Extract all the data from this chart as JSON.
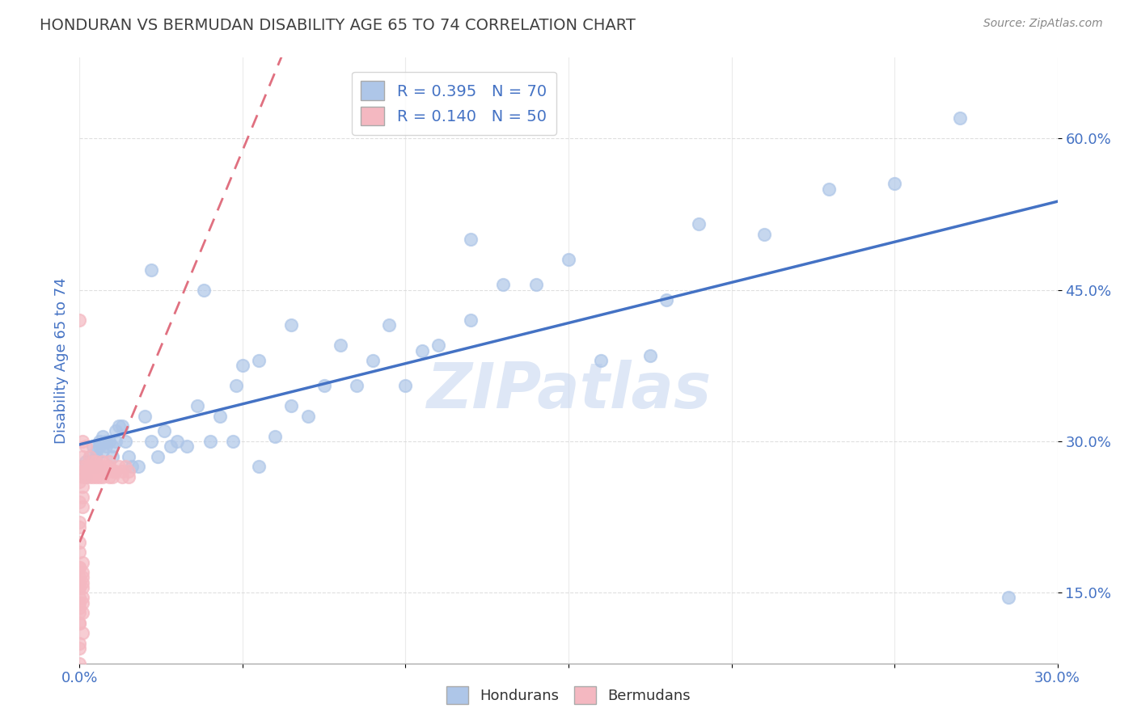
{
  "title": "HONDURAN VS BERMUDAN DISABILITY AGE 65 TO 74 CORRELATION CHART",
  "source": "Source: ZipAtlas.com",
  "ylabel_label": "Disability Age 65 to 74",
  "xlim": [
    0.0,
    0.3
  ],
  "ylim": [
    0.08,
    0.68
  ],
  "scatter_blue_color": "#aec6e8",
  "scatter_pink_color": "#f4b8c1",
  "line_blue_color": "#4472c4",
  "line_pink_color": "#e07080",
  "watermark": "ZIPatlas",
  "background_color": "#ffffff",
  "grid_color": "#d8d8d8",
  "title_color": "#404040",
  "axis_label_color": "#4472c4",
  "tick_label_color": "#4472c4",
  "hondurans_x": [
    0.001,
    0.002,
    0.002,
    0.003,
    0.003,
    0.004,
    0.004,
    0.005,
    0.005,
    0.005,
    0.006,
    0.006,
    0.007,
    0.007,
    0.008,
    0.008,
    0.009,
    0.01,
    0.01,
    0.011,
    0.011,
    0.012,
    0.013,
    0.014,
    0.015,
    0.016,
    0.018,
    0.02,
    0.022,
    0.024,
    0.026,
    0.028,
    0.03,
    0.033,
    0.036,
    0.04,
    0.043,
    0.047,
    0.05,
    0.055,
    0.06,
    0.065,
    0.07,
    0.075,
    0.08,
    0.085,
    0.09,
    0.095,
    0.1,
    0.105,
    0.11,
    0.12,
    0.13,
    0.14,
    0.15,
    0.16,
    0.175,
    0.19,
    0.21,
    0.23,
    0.25,
    0.27,
    0.285,
    0.12,
    0.055,
    0.065,
    0.038,
    0.022,
    0.048,
    0.18
  ],
  "hondurans_y": [
    0.27,
    0.28,
    0.265,
    0.285,
    0.275,
    0.295,
    0.28,
    0.285,
    0.275,
    0.29,
    0.295,
    0.3,
    0.305,
    0.29,
    0.295,
    0.3,
    0.3,
    0.295,
    0.285,
    0.3,
    0.31,
    0.315,
    0.315,
    0.3,
    0.285,
    0.275,
    0.275,
    0.325,
    0.3,
    0.285,
    0.31,
    0.295,
    0.3,
    0.295,
    0.335,
    0.3,
    0.325,
    0.3,
    0.375,
    0.275,
    0.305,
    0.335,
    0.325,
    0.355,
    0.395,
    0.355,
    0.38,
    0.415,
    0.355,
    0.39,
    0.395,
    0.42,
    0.455,
    0.455,
    0.48,
    0.38,
    0.385,
    0.515,
    0.505,
    0.55,
    0.555,
    0.62,
    0.145,
    0.5,
    0.38,
    0.415,
    0.45,
    0.47,
    0.355,
    0.44
  ],
  "bermudans_x": [
    0.0,
    0.001,
    0.001,
    0.001,
    0.001,
    0.001,
    0.002,
    0.002,
    0.002,
    0.002,
    0.003,
    0.003,
    0.003,
    0.003,
    0.003,
    0.004,
    0.004,
    0.004,
    0.005,
    0.005,
    0.005,
    0.005,
    0.006,
    0.006,
    0.006,
    0.007,
    0.007,
    0.007,
    0.008,
    0.008,
    0.009,
    0.009,
    0.009,
    0.01,
    0.01,
    0.011,
    0.012,
    0.013,
    0.013,
    0.014,
    0.015,
    0.015,
    0.0,
    0.001,
    0.0,
    0.0,
    0.001,
    0.0,
    0.001,
    0.0
  ],
  "bermudans_y": [
    0.42,
    0.27,
    0.275,
    0.265,
    0.285,
    0.3,
    0.27,
    0.265,
    0.275,
    0.295,
    0.275,
    0.265,
    0.27,
    0.275,
    0.285,
    0.28,
    0.265,
    0.27,
    0.265,
    0.27,
    0.275,
    0.28,
    0.265,
    0.27,
    0.275,
    0.27,
    0.265,
    0.28,
    0.27,
    0.275,
    0.265,
    0.28,
    0.275,
    0.27,
    0.265,
    0.27,
    0.275,
    0.265,
    0.27,
    0.275,
    0.265,
    0.27,
    0.26,
    0.255,
    0.24,
    0.22,
    0.245,
    0.2,
    0.235,
    0.215
  ],
  "bermudans_extra_x": [
    0.0,
    0.0,
    0.0,
    0.001,
    0.0,
    0.0,
    0.001,
    0.0,
    0.0,
    0.001,
    0.0,
    0.001,
    0.0,
    0.001,
    0.0,
    0.001,
    0.0,
    0.0,
    0.001,
    0.0,
    0.001,
    0.0,
    0.0,
    0.001,
    0.0
  ],
  "bermudans_extra_y": [
    0.155,
    0.145,
    0.135,
    0.16,
    0.12,
    0.1,
    0.11,
    0.08,
    0.095,
    0.13,
    0.165,
    0.17,
    0.155,
    0.14,
    0.175,
    0.18,
    0.19,
    0.175,
    0.165,
    0.16,
    0.145,
    0.13,
    0.12,
    0.155,
    0.14
  ]
}
